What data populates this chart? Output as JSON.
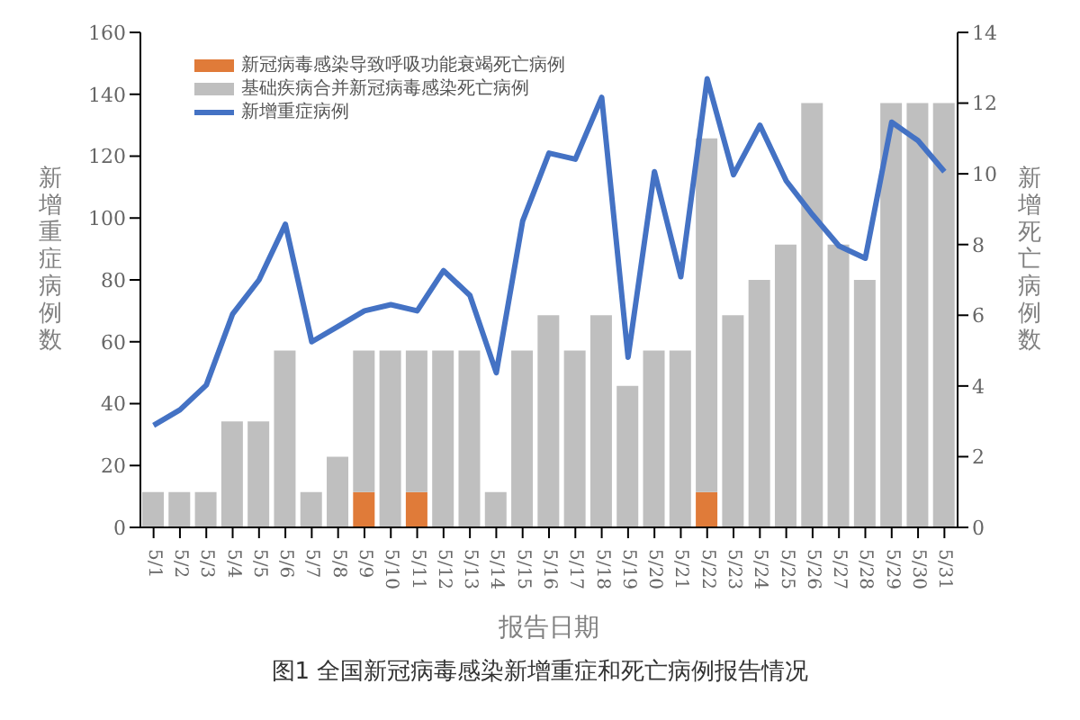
{
  "chart_data": {
    "type": "bar",
    "stacked": true,
    "categories": [
      "5/1",
      "5/2",
      "5/3",
      "5/4",
      "5/5",
      "5/6",
      "5/7",
      "5/8",
      "5/9",
      "5/10",
      "5/11",
      "5/12",
      "5/13",
      "5/14",
      "5/15",
      "5/16",
      "5/17",
      "5/18",
      "5/19",
      "5/20",
      "5/21",
      "5/22",
      "5/23",
      "5/24",
      "5/25",
      "5/26",
      "5/27",
      "5/28",
      "5/29",
      "5/30",
      "5/31"
    ],
    "series": [
      {
        "name": "新冠病毒感染导致呼吸功能衰竭死亡病例",
        "color": "#e07b39",
        "axis": "y2",
        "values": [
          0,
          0,
          0,
          0,
          0,
          0,
          0,
          0,
          1,
          0,
          1,
          0,
          0,
          0,
          0,
          0,
          0,
          0,
          0,
          0,
          0,
          1,
          0,
          0,
          0,
          0,
          0,
          0,
          0,
          0,
          0
        ]
      },
      {
        "name": "基础疾病合并新冠病毒感染死亡病例",
        "color": "#bfbfbf",
        "axis": "y2",
        "values": [
          1,
          1,
          1,
          3,
          3,
          5,
          1,
          2,
          4,
          5,
          4,
          5,
          5,
          1,
          5,
          6,
          5,
          6,
          4,
          5,
          5,
          10,
          6,
          7,
          8,
          12,
          8,
          7,
          12,
          12,
          12
        ]
      },
      {
        "name": "新增重症病例",
        "type": "line",
        "color": "#4472c4",
        "values": [
          33,
          38,
          46,
          69,
          80,
          98,
          60,
          65,
          70,
          72,
          70,
          83,
          75,
          50,
          99,
          121,
          119,
          139,
          55,
          115,
          81,
          145,
          114,
          130,
          112,
          101,
          91,
          87,
          131,
          125,
          115
        ]
      }
    ],
    "xlabel": "报告日期",
    "ylabel": "新增重症病例数",
    "y2label": "新增死亡病例数",
    "ylim": [
      0,
      160
    ],
    "yticks": [
      0,
      20,
      40,
      60,
      80,
      100,
      120,
      140,
      160
    ],
    "y2lim": [
      0,
      14
    ],
    "y2ticks": [
      0,
      2,
      4,
      6,
      8,
      10,
      12,
      14
    ],
    "legend": "top left",
    "grid": false,
    "marker": "none",
    "line_style": "solid",
    "annotations": [
      "图1 全国新冠病毒感染新增重症和死亡病例报告情况"
    ]
  }
}
